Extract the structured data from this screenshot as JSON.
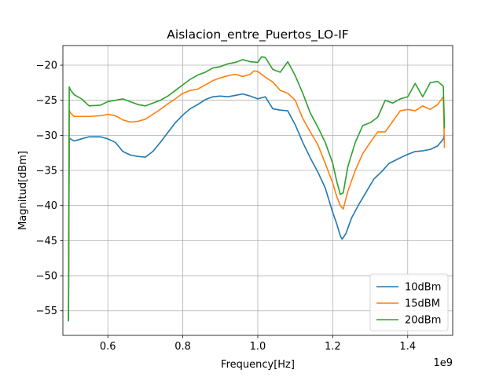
{
  "chart_data": {
    "type": "line",
    "title": "Aislacion_entre_Puertos_LO-IF",
    "xlabel": "Frequency[Hz]",
    "ylabel": "Magnitud[dBm]",
    "x_offset_label": "1e9",
    "x_scale": 1000000000,
    "xlim": [
      480000000,
      1520000000
    ],
    "ylim": [
      -58.5,
      -17.2
    ],
    "xticks": [
      600000000,
      800000000,
      1000000000,
      1200000000,
      1400000000
    ],
    "xtick_labels": [
      "0.6",
      "0.8",
      "1.0",
      "1.2",
      "1.4"
    ],
    "yticks": [
      -55,
      -50,
      -45,
      -40,
      -35,
      -30,
      -25,
      -20
    ],
    "ytick_labels": [
      "−55",
      "−50",
      "−45",
      "−40",
      "−35",
      "−30",
      "−25",
      "−20"
    ],
    "grid": true,
    "legend_position": "lower-right",
    "series": [
      {
        "name": "10dBm",
        "color": "#1f77b4",
        "x": [
          495000000,
          497000000,
          500000000,
          510000000,
          530000000,
          550000000,
          580000000,
          600000000,
          620000000,
          640000000,
          660000000,
          680000000,
          700000000,
          720000000,
          740000000,
          760000000,
          780000000,
          800000000,
          820000000,
          840000000,
          860000000,
          880000000,
          900000000,
          920000000,
          940000000,
          960000000,
          980000000,
          1000000000,
          1020000000,
          1040000000,
          1060000000,
          1080000000,
          1100000000,
          1120000000,
          1140000000,
          1160000000,
          1180000000,
          1200000000,
          1210000000,
          1220000000,
          1225000000,
          1235000000,
          1250000000,
          1270000000,
          1290000000,
          1310000000,
          1330000000,
          1350000000,
          1380000000,
          1400000000,
          1420000000,
          1440000000,
          1460000000,
          1480000000,
          1495000000,
          1498000000
        ],
        "y": [
          -56.5,
          -30.5,
          -30.5,
          -30.8,
          -30.5,
          -30.2,
          -30.2,
          -30.5,
          -31.0,
          -32.3,
          -32.8,
          -33.0,
          -33.1,
          -32.3,
          -31.0,
          -29.6,
          -28.2,
          -27.1,
          -26.2,
          -25.6,
          -24.9,
          -24.5,
          -24.4,
          -24.5,
          -24.3,
          -24.1,
          -24.4,
          -24.8,
          -24.5,
          -26.2,
          -26.4,
          -26.5,
          -28.5,
          -31.0,
          -33.2,
          -35.2,
          -37.5,
          -41.0,
          -42.5,
          -44.3,
          -44.8,
          -44.0,
          -41.8,
          -39.8,
          -38.0,
          -36.2,
          -35.2,
          -34.0,
          -33.2,
          -32.7,
          -32.3,
          -32.2,
          -32.0,
          -31.5,
          -30.5,
          -29.8
        ]
      },
      {
        "name": "15dBM",
        "color": "#ff7f0e",
        "x": [
          495000000,
          497000000,
          500000000,
          510000000,
          530000000,
          550000000,
          580000000,
          600000000,
          620000000,
          640000000,
          660000000,
          680000000,
          700000000,
          720000000,
          740000000,
          760000000,
          780000000,
          800000000,
          820000000,
          840000000,
          860000000,
          880000000,
          900000000,
          920000000,
          940000000,
          960000000,
          980000000,
          990000000,
          1000000000,
          1020000000,
          1040000000,
          1060000000,
          1080000000,
          1100000000,
          1120000000,
          1140000000,
          1160000000,
          1180000000,
          1200000000,
          1210000000,
          1220000000,
          1228000000,
          1240000000,
          1260000000,
          1280000000,
          1300000000,
          1320000000,
          1340000000,
          1360000000,
          1380000000,
          1400000000,
          1420000000,
          1440000000,
          1460000000,
          1480000000,
          1495000000,
          1498000000
        ],
        "y": [
          -56.0,
          -26.4,
          -26.8,
          -27.3,
          -27.3,
          -27.3,
          -27.2,
          -27.0,
          -27.2,
          -27.8,
          -28.1,
          -28.0,
          -27.7,
          -27.0,
          -26.3,
          -25.5,
          -24.8,
          -24.0,
          -23.6,
          -23.4,
          -22.8,
          -22.2,
          -21.8,
          -21.5,
          -21.3,
          -21.6,
          -21.3,
          -20.8,
          -20.9,
          -21.7,
          -22.4,
          -23.6,
          -24.0,
          -25.0,
          -27.6,
          -29.5,
          -31.3,
          -34.0,
          -36.8,
          -38.6,
          -40.0,
          -40.5,
          -38.0,
          -35.0,
          -32.6,
          -31.0,
          -29.5,
          -29.5,
          -28.0,
          -26.5,
          -26.3,
          -26.5,
          -25.8,
          -26.3,
          -25.6,
          -24.5,
          -31.8
        ]
      },
      {
        "name": "20dBm",
        "color": "#2ca02c",
        "x": [
          495000000,
          497000000,
          500000000,
          510000000,
          530000000,
          550000000,
          580000000,
          600000000,
          620000000,
          640000000,
          660000000,
          680000000,
          700000000,
          720000000,
          740000000,
          760000000,
          780000000,
          800000000,
          820000000,
          840000000,
          860000000,
          880000000,
          900000000,
          920000000,
          940000000,
          960000000,
          980000000,
          1000000000,
          1010000000,
          1020000000,
          1040000000,
          1060000000,
          1080000000,
          1100000000,
          1120000000,
          1140000000,
          1160000000,
          1180000000,
          1200000000,
          1210000000,
          1220000000,
          1228000000,
          1240000000,
          1260000000,
          1280000000,
          1300000000,
          1320000000,
          1340000000,
          1360000000,
          1380000000,
          1400000000,
          1420000000,
          1440000000,
          1460000000,
          1480000000,
          1495000000,
          1498000000
        ],
        "y": [
          -56.5,
          -23.1,
          -23.5,
          -24.2,
          -24.8,
          -25.8,
          -25.7,
          -25.2,
          -25.0,
          -24.8,
          -25.2,
          -25.6,
          -25.8,
          -25.4,
          -25.0,
          -24.4,
          -23.6,
          -22.8,
          -22.0,
          -21.4,
          -21.0,
          -20.4,
          -20.2,
          -19.8,
          -19.6,
          -19.2,
          -19.5,
          -19.6,
          -18.8,
          -18.9,
          -20.6,
          -21.0,
          -19.5,
          -21.5,
          -24.0,
          -26.8,
          -28.8,
          -31.0,
          -34.0,
          -36.4,
          -38.4,
          -38.2,
          -34.5,
          -31.0,
          -28.6,
          -28.2,
          -27.4,
          -25.0,
          -25.4,
          -24.8,
          -24.5,
          -22.6,
          -24.5,
          -22.5,
          -22.3,
          -23.0,
          -29.0
        ]
      }
    ]
  }
}
